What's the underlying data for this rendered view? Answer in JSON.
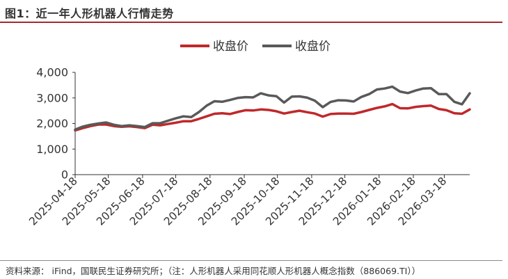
{
  "title": "图1：近一年人形机器人行情走势",
  "source": "资料来源： iFind，国联民生证券研究所；（注：人形机器人采用同花顺人形机器人概念指数（886069.TI））",
  "colors": {
    "red": "#c0282a",
    "gray": "#595959",
    "title_rule": "#a52a2a"
  },
  "chart_data": {
    "type": "line",
    "title": "",
    "xlabel": "",
    "ylabel": "",
    "ylim": [
      0,
      4000
    ],
    "yticks": [
      "0",
      "1,000",
      "2,000",
      "3,000",
      "4,000"
    ],
    "xtick_labels": [
      "2025-04-18",
      "2025-05-18",
      "2025-06-18",
      "2025-07-18",
      "2025-08-18",
      "2025-09-18",
      "2025-10-18",
      "2025-11-18",
      "2025-12-18",
      "2026-01-18",
      "2026-02-18",
      "2026-03-18"
    ],
    "x": [
      "2025-04-18",
      "2025-04-25",
      "2025-05-02",
      "2025-05-09",
      "2025-05-16",
      "2025-05-23",
      "2025-05-30",
      "2025-06-06",
      "2025-06-13",
      "2025-06-20",
      "2025-06-27",
      "2025-07-04",
      "2025-07-11",
      "2025-07-18",
      "2025-07-25",
      "2025-08-01",
      "2025-08-08",
      "2025-08-15",
      "2025-08-22",
      "2025-08-29",
      "2025-09-05",
      "2025-09-12",
      "2025-09-19",
      "2025-09-26",
      "2025-10-03",
      "2025-10-10",
      "2025-10-17",
      "2025-10-24",
      "2025-10-31",
      "2025-11-07",
      "2025-11-14",
      "2025-11-21",
      "2025-11-28",
      "2025-12-05",
      "2025-12-12",
      "2025-12-19",
      "2025-12-26",
      "2026-01-02",
      "2026-01-09",
      "2026-01-16",
      "2026-01-23",
      "2026-01-30",
      "2026-02-06",
      "2026-02-13",
      "2026-02-20",
      "2026-02-27",
      "2026-03-06",
      "2026-03-13",
      "2026-03-20",
      "2026-03-27",
      "2026-04-03",
      "2026-04-10"
    ],
    "series": [
      {
        "name": "收盘价",
        "color": "#c0282a",
        "values": [
          1730,
          1820,
          1900,
          1960,
          1960,
          1900,
          1870,
          1890,
          1860,
          1820,
          1950,
          1930,
          1980,
          2030,
          2090,
          2090,
          2180,
          2280,
          2380,
          2400,
          2370,
          2450,
          2520,
          2510,
          2550,
          2530,
          2480,
          2390,
          2450,
          2500,
          2440,
          2390,
          2270,
          2370,
          2390,
          2390,
          2380,
          2450,
          2530,
          2610,
          2670,
          2760,
          2600,
          2590,
          2650,
          2680,
          2700,
          2570,
          2520,
          2400,
          2380,
          2550
        ]
      },
      {
        "name": "收盘价",
        "color": "#595959",
        "values": [
          1760,
          1880,
          1950,
          2000,
          2040,
          1950,
          1900,
          1930,
          1900,
          1860,
          2010,
          2010,
          2110,
          2200,
          2280,
          2250,
          2450,
          2700,
          2870,
          2850,
          2920,
          3000,
          3030,
          3020,
          3180,
          3100,
          3070,
          2820,
          3050,
          3060,
          3010,
          2890,
          2640,
          2840,
          2910,
          2900,
          2860,
          3040,
          3150,
          3330,
          3370,
          3440,
          3250,
          3190,
          3290,
          3370,
          3380,
          3150,
          3150,
          2850,
          2750,
          3180
        ]
      }
    ],
    "legend": "top-center",
    "grid": false
  }
}
